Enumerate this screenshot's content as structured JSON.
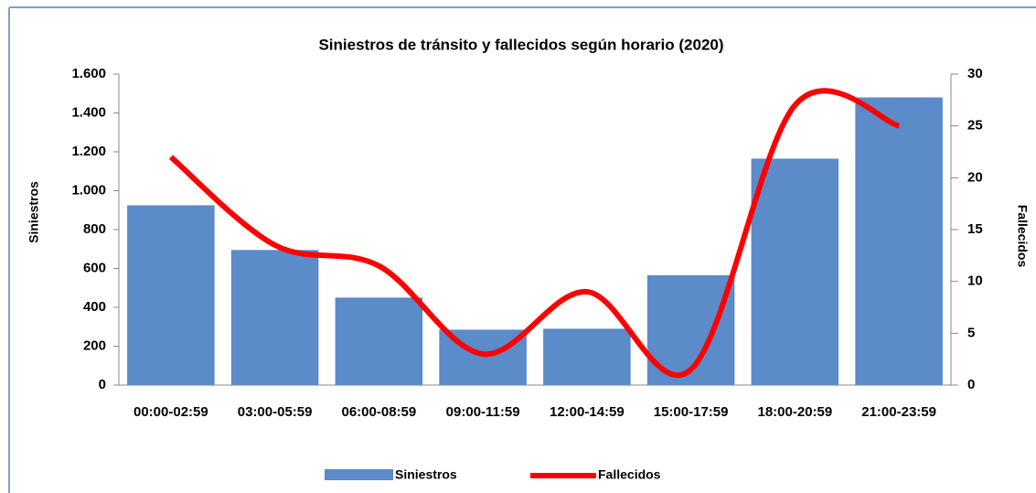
{
  "chart_data": {
    "type": "bar",
    "title": "Siniestros de tránsito y fallecidos según horario (2020)",
    "y_label": "Siniestros",
    "y2_label": "Fallecidos",
    "categories": [
      "00:00-02:59",
      "03:00-05:59",
      "06:00-08:59",
      "09:00-11:59",
      "12:00-14:59",
      "15:00-17:59",
      "18:00-20:59",
      "21:00-23:59"
    ],
    "series": [
      {
        "name": "Siniestros",
        "type": "bar",
        "color": "#5b8bc9",
        "values": [
          925,
          695,
          450,
          285,
          290,
          565,
          1165,
          1480
        ]
      },
      {
        "name": "Fallecidos",
        "type": "line",
        "axis": "y2",
        "color": "#ff0000",
        "values": [
          22,
          13.5,
          11.5,
          3,
          9,
          1.5,
          27,
          25
        ]
      }
    ],
    "ylim": [
      0,
      1600
    ],
    "yticks": [
      0,
      200,
      400,
      600,
      800,
      {
        "value": 1000,
        "label": "1.000"
      },
      {
        "value": 1200,
        "label": "1.200"
      },
      {
        "value": 1400,
        "label": "1.400"
      },
      {
        "value": 1600,
        "label": "1.600"
      }
    ],
    "y2lim": [
      0,
      30
    ],
    "y2ticks": [
      0,
      5,
      10,
      15,
      20,
      25,
      30
    ],
    "legend": "bottom"
  }
}
